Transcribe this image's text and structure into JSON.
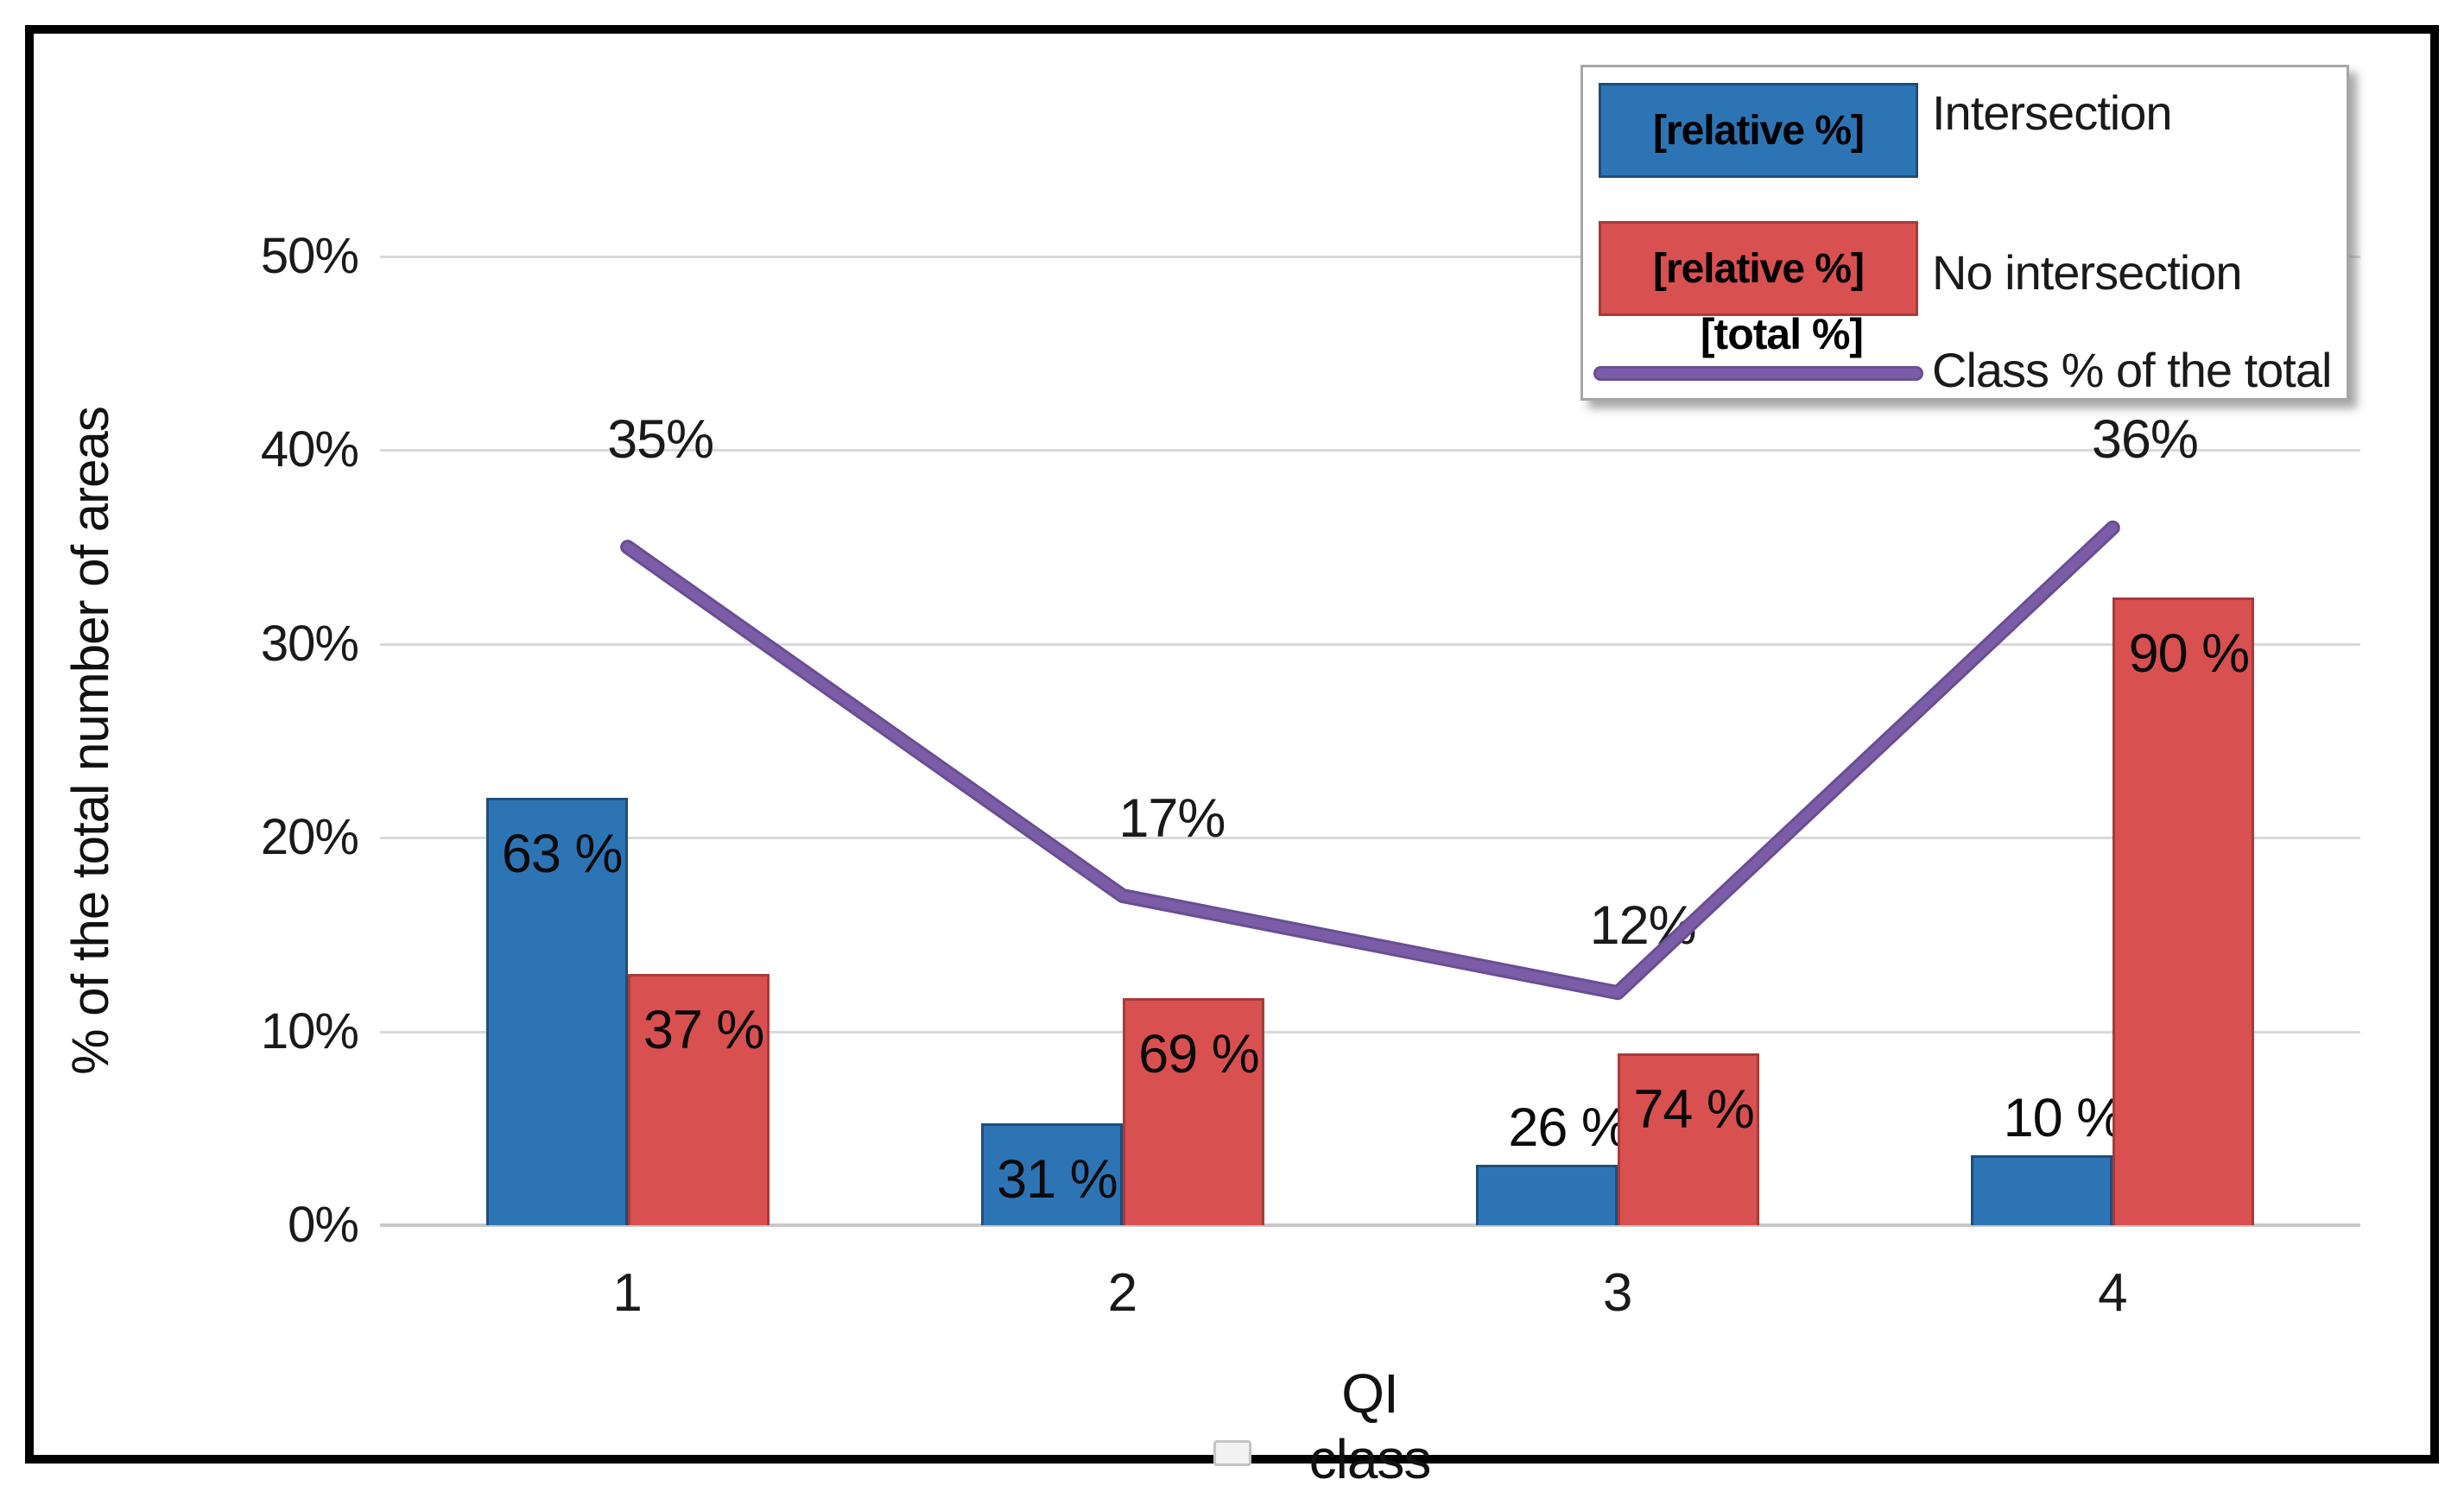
{
  "chart_data": {
    "type": "bar",
    "subtype": "clustered-bars-with-line-overlay",
    "title": "",
    "categories": [
      "1",
      "2",
      "3",
      "4"
    ],
    "xlabel": "QI class",
    "ylabel": "% of the total number of areas",
    "yticks": [
      "0%",
      "10%",
      "20%",
      "30%",
      "40%",
      "50%"
    ],
    "ylim": [
      0,
      50
    ],
    "grid": true,
    "legend_position": "top-right",
    "series": [
      {
        "name": "Intersection",
        "type": "bar",
        "swatch_label": "[relative %]",
        "color": "#2D74B5",
        "border_color": "#1F4E79",
        "data_labels": [
          "63 %",
          "31 %",
          "26 %",
          "10 %"
        ],
        "relative_pct": [
          63,
          31,
          26,
          10
        ],
        "bar_height_axis_pct": [
          22.05,
          5.27,
          3.12,
          3.6
        ],
        "label_inside": [
          true,
          true,
          false,
          false
        ]
      },
      {
        "name": "No intersection",
        "type": "bar",
        "swatch_label": "[relative %]",
        "color": "#D95050",
        "border_color": "#A93A3A",
        "data_labels": [
          "37 %",
          "69 %",
          "74 %",
          "90 %"
        ],
        "relative_pct": [
          37,
          69,
          74,
          90
        ],
        "bar_height_axis_pct": [
          12.95,
          11.73,
          8.88,
          32.4
        ],
        "label_inside": [
          true,
          true,
          true,
          true
        ]
      },
      {
        "name": "Class % of the total",
        "type": "line",
        "swatch_label": "[total %]",
        "color": "#7B5CA6",
        "edge_color": "#6A4E94",
        "data_labels": [
          "35%",
          "17%",
          "12%",
          "36%"
        ],
        "values_pct": [
          35,
          17,
          12,
          36
        ]
      }
    ]
  },
  "colors": {
    "gridline": "#D9D9D9",
    "baseline": "#C7C7C7",
    "frame": "#000000",
    "legend_border": "#A6A6A6",
    "text": "#111111"
  }
}
